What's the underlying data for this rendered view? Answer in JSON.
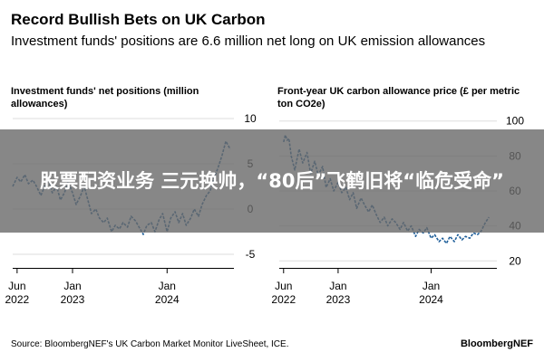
{
  "title": "Record Bullish Bets on UK Carbon",
  "subtitle": "Investment funds' positions are 6.6 million net long on UK emission allowances",
  "banner_text": "股票配资业务 三元换帅，“80后”飞鹤旧将“临危受命”",
  "source": "Source: BloombergNEF's UK Carbon Market Monitor LiveSheet, ICE.",
  "brand": "BloombergNEF",
  "colors": {
    "line": "#1f5f9a",
    "axis": "#000000",
    "grid": "#dddddd",
    "banner": "#6b6b6b"
  },
  "chart_data": [
    {
      "type": "line",
      "title": "Investment funds' net positions (million allowances)",
      "x_tick_labels": [
        [
          "Jun",
          "2022"
        ],
        [
          "Jan",
          "2023"
        ],
        [
          "Jan",
          "2024"
        ]
      ],
      "x_tick_dates": [
        "2022-06-01",
        "2023-01-01",
        "2024-01-01"
      ],
      "xlim": [
        "2022-05-15",
        "2024-09-15"
      ],
      "y_ticks": [
        10,
        5,
        0,
        -5
      ],
      "ylim": [
        -6.5,
        10.5
      ],
      "series": [
        {
          "x": [
            "2022-05-15",
            "2022-06-01",
            "2022-06-15",
            "2022-07-01",
            "2022-07-15",
            "2022-08-01",
            "2022-08-15",
            "2022-09-01",
            "2022-09-15",
            "2022-10-01",
            "2022-10-15",
            "2022-11-01",
            "2022-11-15",
            "2022-12-01",
            "2022-12-15",
            "2023-01-01",
            "2023-01-15",
            "2023-02-01",
            "2023-02-15",
            "2023-03-01",
            "2023-03-15",
            "2023-04-01",
            "2023-04-15",
            "2023-05-01",
            "2023-05-15",
            "2023-06-01",
            "2023-06-15",
            "2023-07-01",
            "2023-07-15",
            "2023-08-01",
            "2023-08-15",
            "2023-09-01",
            "2023-09-15",
            "2023-10-01",
            "2023-10-15",
            "2023-11-01",
            "2023-11-15",
            "2023-12-01",
            "2023-12-15",
            "2024-01-01",
            "2024-01-15",
            "2024-02-01",
            "2024-02-15",
            "2024-03-01",
            "2024-03-15",
            "2024-04-01",
            "2024-04-15",
            "2024-05-01",
            "2024-05-15",
            "2024-06-01",
            "2024-06-15",
            "2024-07-01",
            "2024-07-15",
            "2024-08-01",
            "2024-08-15",
            "2024-09-01"
          ],
          "y": [
            2.5,
            3.5,
            3.0,
            3.8,
            2.8,
            3.2,
            2.5,
            1.5,
            2.5,
            3.2,
            1.8,
            2.5,
            1.0,
            1.8,
            3.0,
            1.8,
            0.5,
            1.5,
            2.5,
            1.0,
            -0.5,
            0.0,
            -1.0,
            -1.5,
            -1.0,
            -2.5,
            -1.8,
            -2.2,
            -1.5,
            -2.0,
            -0.8,
            -1.3,
            -2.0,
            -2.8,
            -1.8,
            -1.5,
            -2.5,
            -1.2,
            -0.5,
            -2.5,
            -1.0,
            -0.3,
            -1.5,
            -0.5,
            -1.8,
            -1.0,
            0.0,
            -0.8,
            0.5,
            1.5,
            2.0,
            3.5,
            4.5,
            6.0,
            7.5,
            6.6
          ]
        }
      ]
    },
    {
      "type": "line",
      "title": "Front-year UK carbon allowance price (£ per metric ton CO2e)",
      "x_tick_labels": [
        [
          "Jun",
          "2022"
        ],
        [
          "Jan",
          "2023"
        ],
        [
          "Jan",
          "2024"
        ]
      ],
      "x_tick_dates": [
        "2022-06-01",
        "2023-01-01",
        "2024-01-01"
      ],
      "xlim": [
        "2022-05-15",
        "2024-09-15"
      ],
      "y_ticks": [
        100,
        80,
        60,
        40,
        20
      ],
      "ylim": [
        16,
        104
      ],
      "series": [
        {
          "x": [
            "2022-06-01",
            "2022-06-08",
            "2022-06-15",
            "2022-06-22",
            "2022-07-01",
            "2022-07-15",
            "2022-08-01",
            "2022-08-15",
            "2022-09-01",
            "2022-09-15",
            "2022-10-01",
            "2022-10-15",
            "2022-11-01",
            "2022-11-15",
            "2022-12-01",
            "2022-12-15",
            "2023-01-01",
            "2023-01-15",
            "2023-02-01",
            "2023-02-15",
            "2023-03-01",
            "2023-03-15",
            "2023-04-01",
            "2023-04-15",
            "2023-05-01",
            "2023-05-15",
            "2023-06-01",
            "2023-06-15",
            "2023-07-01",
            "2023-07-15",
            "2023-08-01",
            "2023-08-15",
            "2023-09-01",
            "2023-09-15",
            "2023-10-01",
            "2023-10-15",
            "2023-11-01",
            "2023-11-15",
            "2023-12-01",
            "2023-12-15",
            "2024-01-01",
            "2024-01-15",
            "2024-02-01",
            "2024-02-15",
            "2024-03-01",
            "2024-03-15",
            "2024-04-01",
            "2024-04-15",
            "2024-05-01",
            "2024-05-15",
            "2024-06-01",
            "2024-06-15",
            "2024-07-01",
            "2024-07-15",
            "2024-08-01",
            "2024-08-15"
          ],
          "y": [
            88,
            92,
            89,
            90,
            80,
            72,
            84,
            76,
            82,
            70,
            77,
            69,
            74,
            62,
            67,
            60,
            65,
            59,
            62,
            55,
            59,
            50,
            56,
            52,
            48,
            52,
            46,
            42,
            45,
            40,
            44,
            42,
            38,
            42,
            37,
            40,
            34,
            38,
            36,
            39,
            33,
            35,
            31,
            33,
            30,
            34,
            31,
            35,
            32,
            34,
            33,
            36,
            35,
            37,
            42,
            45
          ]
        }
      ]
    }
  ]
}
